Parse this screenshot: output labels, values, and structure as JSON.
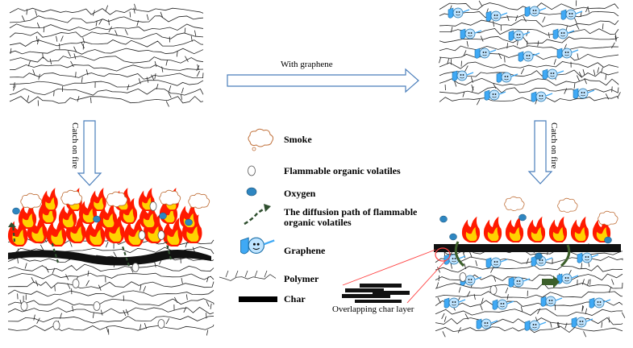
{
  "top_arrow": {
    "label": "With graphene"
  },
  "left_arrow": {
    "label": "Catch on fire"
  },
  "right_arrow": {
    "label": "Catch on fire"
  },
  "legend": {
    "smoke": "Smoke",
    "volatiles": "Flammable organic volatiles",
    "oxygen": "Oxygen",
    "diffusion_line1": "The diffusion path of flammable",
    "diffusion_line2": "organic volatiles",
    "graphene": "Graphene",
    "polymer": "Polymer",
    "char": "Char"
  },
  "char_callout": {
    "label": "Overlapping char layer"
  },
  "colors": {
    "arrow_outline": "#4a7ebb",
    "oxygen": "#2e86c1",
    "graphene": "#3fa9f5",
    "flame_outer": "#ff1a00",
    "flame_inner": "#ffd200",
    "smoke": "#c0703a",
    "diffusion": "#2f4f2f",
    "callout_line": "#ff4040"
  }
}
